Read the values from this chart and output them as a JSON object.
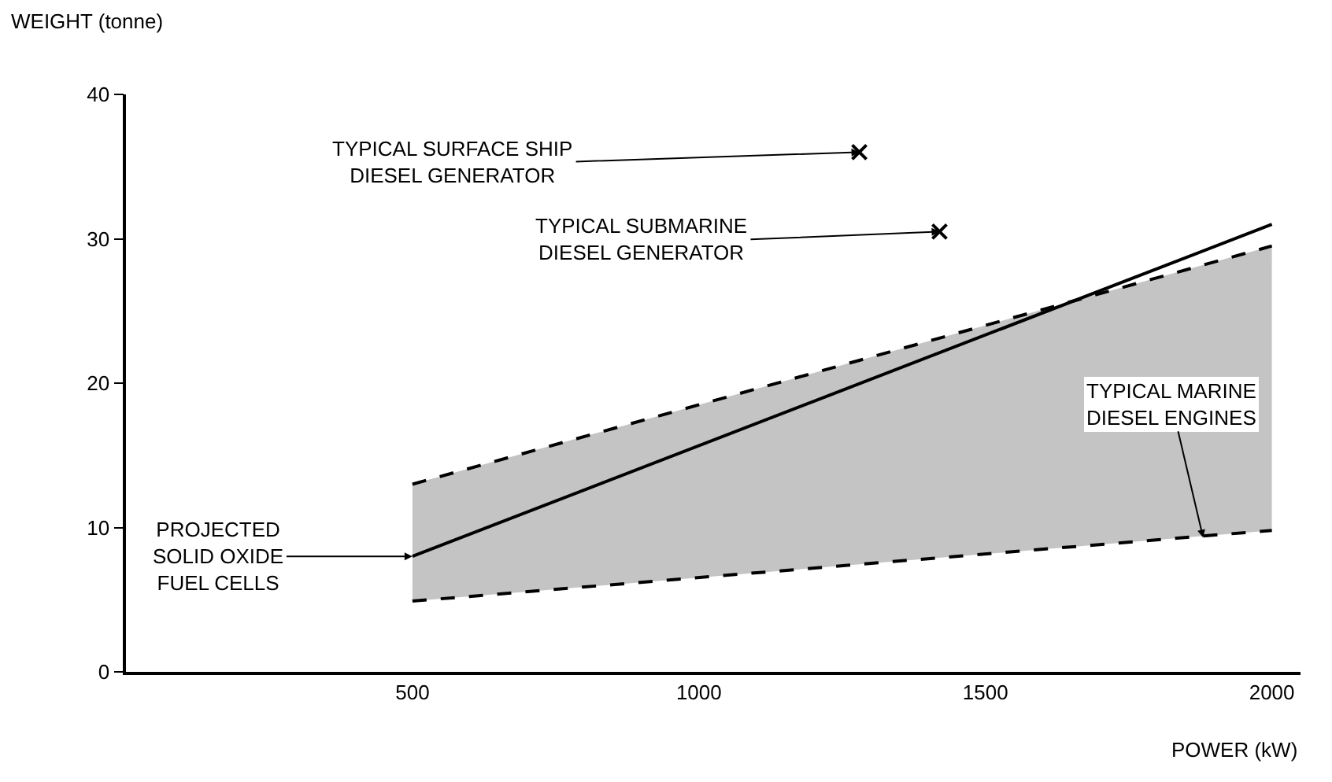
{
  "chart_data": {
    "type": "line",
    "xlabel": "POWER (kW)",
    "ylabel": "WEIGHT (tonne)",
    "xlim": [
      0,
      2050
    ],
    "xticks": [
      500,
      1000,
      1500,
      2000
    ],
    "ylim": [
      0,
      40
    ],
    "yticks": [
      0,
      10,
      20,
      30,
      40
    ],
    "series": [
      {
        "type": "line",
        "color": "#000000",
        "line_style": "dashed",
        "x": [
          500,
          2000
        ],
        "values": [
          4.9,
          9.8
        ]
      },
      {
        "type": "area",
        "color": "#c4c4c4",
        "line_style": "dashed",
        "x": [
          500,
          2000
        ],
        "values": [
          13,
          29.5
        ]
      },
      {
        "color": "#000000",
        "line_style": "solid",
        "x": [
          500,
          2000
        ],
        "values": [
          8,
          31
        ]
      },
      {
        "type": "scatter",
        "color": "#000000",
        "marker": "cross",
        "x": [
          1280,
          1420
        ],
        "values": [
          36,
          30.5
        ]
      }
    ],
    "annotations": [
      {
        "text": "TYPICAL SURFACE SHIP\nDIESEL GENERATOR",
        "x": 1280,
        "y": 36
      },
      {
        "text": "TYPICAL SUBMARINE\nDIESEL GENERATOR",
        "x": 1420,
        "y": 30.5
      },
      {
        "text": "PROJECTED\nSOLID OXIDE\nFUEL CELLS",
        "x": 500,
        "y": 8
      },
      {
        "text": "TYPICAL MARINE\nDIESEL ENGINES",
        "x": 1880,
        "y": 9.3
      }
    ]
  }
}
